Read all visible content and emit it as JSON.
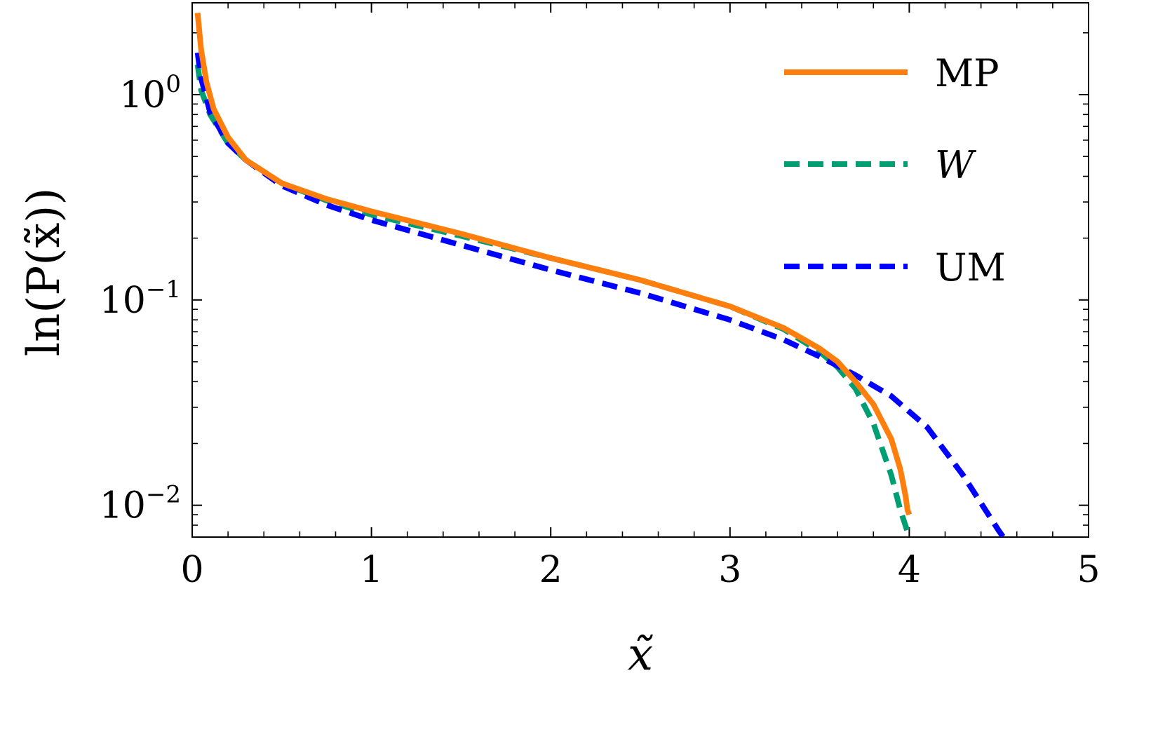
{
  "chart_data": {
    "type": "line",
    "title": "",
    "xlabel": "x̃",
    "ylabel": "ln(P(x̃))",
    "yscale": "log",
    "xlim": [
      0,
      5
    ],
    "ylim": [
      0.007,
      2.8
    ],
    "x_ticks": [
      {
        "value": 0,
        "label": "0"
      },
      {
        "value": 1,
        "label": "1"
      },
      {
        "value": 2,
        "label": "2"
      },
      {
        "value": 3,
        "label": "3"
      },
      {
        "value": 4,
        "label": "4"
      },
      {
        "value": 5,
        "label": "5"
      }
    ],
    "y_ticks": [
      {
        "value": 1,
        "base": "10",
        "exp": "0"
      },
      {
        "value": 0.1,
        "base": "10",
        "exp": "−1"
      },
      {
        "value": 0.01,
        "base": "10",
        "exp": "−2"
      }
    ],
    "grid": false,
    "legend_position": "top-right",
    "series": [
      {
        "name": "MP",
        "color": "#ff7f0e",
        "style": "solid",
        "x": [
          0.03,
          0.05,
          0.08,
          0.12,
          0.2,
          0.3,
          0.5,
          0.75,
          1.0,
          1.5,
          2.0,
          2.5,
          3.0,
          3.3,
          3.5,
          3.6,
          3.7,
          3.8,
          3.9,
          3.95,
          3.98,
          3.99,
          4.0
        ],
        "y": [
          2.5,
          1.65,
          1.15,
          0.85,
          0.62,
          0.48,
          0.37,
          0.31,
          0.27,
          0.21,
          0.16,
          0.125,
          0.093,
          0.073,
          0.058,
          0.05,
          0.04,
          0.031,
          0.021,
          0.015,
          0.011,
          0.0095,
          0.009
        ]
      },
      {
        "name": "W",
        "color": "#009e73",
        "style": "dashed",
        "x": [
          0.03,
          0.05,
          0.1,
          0.2,
          0.3,
          0.5,
          0.75,
          1.0,
          1.5,
          2.0,
          2.5,
          3.0,
          3.3,
          3.5,
          3.6,
          3.7,
          3.8,
          3.9,
          3.95,
          4.0
        ],
        "y": [
          1.4,
          1.05,
          0.8,
          0.58,
          0.48,
          0.37,
          0.305,
          0.26,
          0.205,
          0.16,
          0.125,
          0.093,
          0.072,
          0.056,
          0.047,
          0.037,
          0.025,
          0.014,
          0.0095,
          0.007
        ]
      },
      {
        "name": "UM",
        "color": "#0000ff",
        "style": "dashed",
        "x": [
          0.03,
          0.05,
          0.1,
          0.2,
          0.3,
          0.5,
          0.75,
          1.0,
          1.5,
          2.0,
          2.5,
          3.0,
          3.3,
          3.5,
          3.7,
          3.9,
          4.1,
          4.3,
          4.5,
          4.55
        ],
        "y": [
          1.6,
          1.2,
          0.82,
          0.58,
          0.48,
          0.36,
          0.29,
          0.245,
          0.185,
          0.14,
          0.108,
          0.08,
          0.064,
          0.053,
          0.043,
          0.034,
          0.024,
          0.014,
          0.0075,
          0.0065
        ]
      }
    ]
  }
}
